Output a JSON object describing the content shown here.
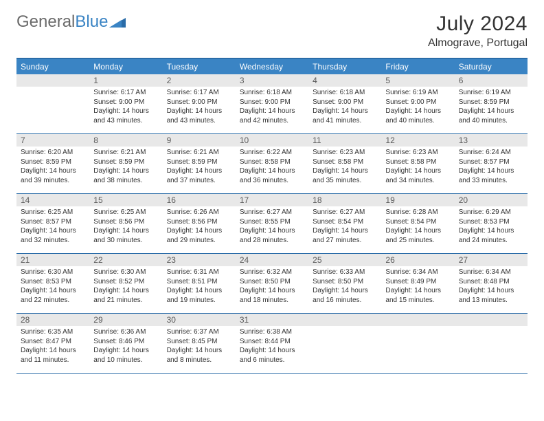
{
  "brand": {
    "part1": "General",
    "part2": "Blue"
  },
  "title": "July 2024",
  "location": "Almograve, Portugal",
  "colors": {
    "header_bg": "#3a84c4",
    "header_text": "#ffffff",
    "border": "#2a6ca8",
    "daynum_bg": "#e8e8e8",
    "daynum_text": "#5a5a5a",
    "text": "#333333",
    "logo_gray": "#6a6a6a",
    "logo_blue": "#3a84c4"
  },
  "weekdays": [
    "Sunday",
    "Monday",
    "Tuesday",
    "Wednesday",
    "Thursday",
    "Friday",
    "Saturday"
  ],
  "weeks": [
    [
      {
        "n": "",
        "sr": "",
        "ss": "",
        "dl": ""
      },
      {
        "n": "1",
        "sr": "Sunrise: 6:17 AM",
        "ss": "Sunset: 9:00 PM",
        "dl": "Daylight: 14 hours and 43 minutes."
      },
      {
        "n": "2",
        "sr": "Sunrise: 6:17 AM",
        "ss": "Sunset: 9:00 PM",
        "dl": "Daylight: 14 hours and 43 minutes."
      },
      {
        "n": "3",
        "sr": "Sunrise: 6:18 AM",
        "ss": "Sunset: 9:00 PM",
        "dl": "Daylight: 14 hours and 42 minutes."
      },
      {
        "n": "4",
        "sr": "Sunrise: 6:18 AM",
        "ss": "Sunset: 9:00 PM",
        "dl": "Daylight: 14 hours and 41 minutes."
      },
      {
        "n": "5",
        "sr": "Sunrise: 6:19 AM",
        "ss": "Sunset: 9:00 PM",
        "dl": "Daylight: 14 hours and 40 minutes."
      },
      {
        "n": "6",
        "sr": "Sunrise: 6:19 AM",
        "ss": "Sunset: 8:59 PM",
        "dl": "Daylight: 14 hours and 40 minutes."
      }
    ],
    [
      {
        "n": "7",
        "sr": "Sunrise: 6:20 AM",
        "ss": "Sunset: 8:59 PM",
        "dl": "Daylight: 14 hours and 39 minutes."
      },
      {
        "n": "8",
        "sr": "Sunrise: 6:21 AM",
        "ss": "Sunset: 8:59 PM",
        "dl": "Daylight: 14 hours and 38 minutes."
      },
      {
        "n": "9",
        "sr": "Sunrise: 6:21 AM",
        "ss": "Sunset: 8:59 PM",
        "dl": "Daylight: 14 hours and 37 minutes."
      },
      {
        "n": "10",
        "sr": "Sunrise: 6:22 AM",
        "ss": "Sunset: 8:58 PM",
        "dl": "Daylight: 14 hours and 36 minutes."
      },
      {
        "n": "11",
        "sr": "Sunrise: 6:23 AM",
        "ss": "Sunset: 8:58 PM",
        "dl": "Daylight: 14 hours and 35 minutes."
      },
      {
        "n": "12",
        "sr": "Sunrise: 6:23 AM",
        "ss": "Sunset: 8:58 PM",
        "dl": "Daylight: 14 hours and 34 minutes."
      },
      {
        "n": "13",
        "sr": "Sunrise: 6:24 AM",
        "ss": "Sunset: 8:57 PM",
        "dl": "Daylight: 14 hours and 33 minutes."
      }
    ],
    [
      {
        "n": "14",
        "sr": "Sunrise: 6:25 AM",
        "ss": "Sunset: 8:57 PM",
        "dl": "Daylight: 14 hours and 32 minutes."
      },
      {
        "n": "15",
        "sr": "Sunrise: 6:25 AM",
        "ss": "Sunset: 8:56 PM",
        "dl": "Daylight: 14 hours and 30 minutes."
      },
      {
        "n": "16",
        "sr": "Sunrise: 6:26 AM",
        "ss": "Sunset: 8:56 PM",
        "dl": "Daylight: 14 hours and 29 minutes."
      },
      {
        "n": "17",
        "sr": "Sunrise: 6:27 AM",
        "ss": "Sunset: 8:55 PM",
        "dl": "Daylight: 14 hours and 28 minutes."
      },
      {
        "n": "18",
        "sr": "Sunrise: 6:27 AM",
        "ss": "Sunset: 8:54 PM",
        "dl": "Daylight: 14 hours and 27 minutes."
      },
      {
        "n": "19",
        "sr": "Sunrise: 6:28 AM",
        "ss": "Sunset: 8:54 PM",
        "dl": "Daylight: 14 hours and 25 minutes."
      },
      {
        "n": "20",
        "sr": "Sunrise: 6:29 AM",
        "ss": "Sunset: 8:53 PM",
        "dl": "Daylight: 14 hours and 24 minutes."
      }
    ],
    [
      {
        "n": "21",
        "sr": "Sunrise: 6:30 AM",
        "ss": "Sunset: 8:53 PM",
        "dl": "Daylight: 14 hours and 22 minutes."
      },
      {
        "n": "22",
        "sr": "Sunrise: 6:30 AM",
        "ss": "Sunset: 8:52 PM",
        "dl": "Daylight: 14 hours and 21 minutes."
      },
      {
        "n": "23",
        "sr": "Sunrise: 6:31 AM",
        "ss": "Sunset: 8:51 PM",
        "dl": "Daylight: 14 hours and 19 minutes."
      },
      {
        "n": "24",
        "sr": "Sunrise: 6:32 AM",
        "ss": "Sunset: 8:50 PM",
        "dl": "Daylight: 14 hours and 18 minutes."
      },
      {
        "n": "25",
        "sr": "Sunrise: 6:33 AM",
        "ss": "Sunset: 8:50 PM",
        "dl": "Daylight: 14 hours and 16 minutes."
      },
      {
        "n": "26",
        "sr": "Sunrise: 6:34 AM",
        "ss": "Sunset: 8:49 PM",
        "dl": "Daylight: 14 hours and 15 minutes."
      },
      {
        "n": "27",
        "sr": "Sunrise: 6:34 AM",
        "ss": "Sunset: 8:48 PM",
        "dl": "Daylight: 14 hours and 13 minutes."
      }
    ],
    [
      {
        "n": "28",
        "sr": "Sunrise: 6:35 AM",
        "ss": "Sunset: 8:47 PM",
        "dl": "Daylight: 14 hours and 11 minutes."
      },
      {
        "n": "29",
        "sr": "Sunrise: 6:36 AM",
        "ss": "Sunset: 8:46 PM",
        "dl": "Daylight: 14 hours and 10 minutes."
      },
      {
        "n": "30",
        "sr": "Sunrise: 6:37 AM",
        "ss": "Sunset: 8:45 PM",
        "dl": "Daylight: 14 hours and 8 minutes."
      },
      {
        "n": "31",
        "sr": "Sunrise: 6:38 AM",
        "ss": "Sunset: 8:44 PM",
        "dl": "Daylight: 14 hours and 6 minutes."
      },
      {
        "n": "",
        "sr": "",
        "ss": "",
        "dl": ""
      },
      {
        "n": "",
        "sr": "",
        "ss": "",
        "dl": ""
      },
      {
        "n": "",
        "sr": "",
        "ss": "",
        "dl": ""
      }
    ]
  ]
}
